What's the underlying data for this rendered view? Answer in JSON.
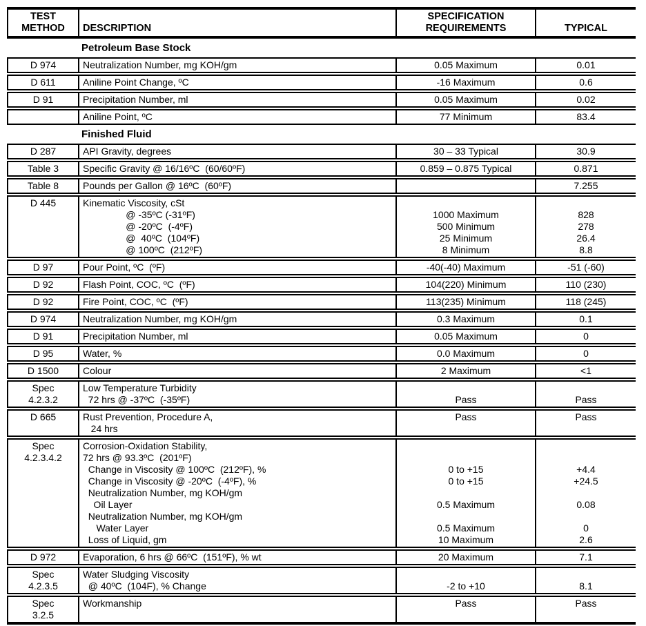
{
  "header": {
    "test_method_line1": "TEST",
    "test_method_line2": "METHOD",
    "description": "DESCRIPTION",
    "spec_line1": "SPECIFICATION",
    "spec_line2": "REQUIREMENTS",
    "typical": "TYPICAL"
  },
  "rows": [
    {
      "type": "section",
      "title": "Petroleum Base Stock"
    },
    {
      "type": "data",
      "method": [
        "D 974"
      ],
      "desc": [
        "Neutralization Number, mg KOH/gm"
      ],
      "spec": [
        "0.05 Maximum"
      ],
      "typical": [
        "0.01"
      ]
    },
    {
      "type": "data",
      "method": [
        "D 611"
      ],
      "desc": [
        "Aniline Point Change, ºC"
      ],
      "spec": [
        "-16 Maximum"
      ],
      "typical": [
        "0.6"
      ]
    },
    {
      "type": "data",
      "method": [
        "D 91"
      ],
      "desc": [
        "Precipitation Number, ml"
      ],
      "spec": [
        "0.05 Maximum"
      ],
      "typical": [
        "0.02"
      ]
    },
    {
      "type": "data",
      "method": [
        ""
      ],
      "desc": [
        "Aniline Point, ºC"
      ],
      "spec": [
        "77 Minimum"
      ],
      "typical": [
        "83.4"
      ]
    },
    {
      "type": "section",
      "title": "Finished Fluid"
    },
    {
      "type": "data",
      "method": [
        "D 287"
      ],
      "desc": [
        "API Gravity, degrees"
      ],
      "spec": [
        "30 – 33 Typical"
      ],
      "typical": [
        "30.9"
      ]
    },
    {
      "type": "data",
      "method": [
        "Table 3"
      ],
      "desc": [
        "Specific Gravity @ 16/16ºC  (60/60ºF)"
      ],
      "spec": [
        "0.859 – 0.875 Typical"
      ],
      "typical": [
        "0.871"
      ]
    },
    {
      "type": "data",
      "method": [
        "Table 8"
      ],
      "desc": [
        "Pounds per Gallon @ 16ºC  (60ºF)"
      ],
      "spec": [
        ""
      ],
      "typical": [
        "7.255"
      ]
    },
    {
      "type": "data",
      "method": [
        "D 445"
      ],
      "desc": [
        "Kinematic Viscosity, cSt",
        "                @ -35ºC (-31ºF)",
        "                @ -20ºC  (-4ºF)",
        "                @  40ºC  (104ºF)",
        "                @ 100ºC  (212ºF)"
      ],
      "spec": [
        "",
        "1000 Maximum",
        "500 Minimum",
        "25 Minimum",
        "8 Minimum"
      ],
      "typical": [
        "",
        "828",
        "278",
        "26.4",
        "8.8"
      ]
    },
    {
      "type": "data",
      "method": [
        "D 97"
      ],
      "desc": [
        "Pour Point, ºC  (ºF)"
      ],
      "spec": [
        "-40(-40) Maximum"
      ],
      "typical": [
        "-51 (-60)"
      ]
    },
    {
      "type": "data",
      "method": [
        "D 92"
      ],
      "desc": [
        "Flash Point, COC, ºC  (ºF)"
      ],
      "spec": [
        "104(220) Minimum"
      ],
      "typical": [
        "110 (230)"
      ]
    },
    {
      "type": "data",
      "method": [
        "D 92"
      ],
      "desc": [
        "Fire Point, COC, ºC  (ºF)"
      ],
      "spec": [
        "113(235) Minimum"
      ],
      "typical": [
        "118 (245)"
      ]
    },
    {
      "type": "data",
      "method": [
        "D 974"
      ],
      "desc": [
        "Neutralization Number, mg KOH/gm"
      ],
      "spec": [
        "0.3 Maximum"
      ],
      "typical": [
        "0.1"
      ]
    },
    {
      "type": "data",
      "method": [
        "D 91"
      ],
      "desc": [
        "Precipitation Number, ml"
      ],
      "spec": [
        "0.05 Maximum"
      ],
      "typical": [
        "0"
      ]
    },
    {
      "type": "data",
      "method": [
        "D 95"
      ],
      "desc": [
        "Water, %"
      ],
      "spec": [
        "0.0 Maximum"
      ],
      "typical": [
        "0"
      ]
    },
    {
      "type": "data",
      "method": [
        "D 1500"
      ],
      "desc": [
        "Colour"
      ],
      "spec": [
        "2 Maximum"
      ],
      "typical": [
        "<1"
      ]
    },
    {
      "type": "data",
      "method": [
        "Spec",
        "4.2.3.2"
      ],
      "desc": [
        "Low Temperature Turbidity",
        "  72 hrs @ -37ºC  (-35ºF)"
      ],
      "spec": [
        "",
        "Pass"
      ],
      "typical": [
        "",
        "Pass"
      ]
    },
    {
      "type": "data",
      "method": [
        "D 665"
      ],
      "desc": [
        "Rust Prevention, Procedure A,",
        "   24 hrs"
      ],
      "spec": [
        "Pass",
        ""
      ],
      "typical": [
        "Pass",
        ""
      ]
    },
    {
      "type": "data",
      "method": [
        "Spec",
        "4.2.3.4.2"
      ],
      "desc": [
        "Corrosion-Oxidation Stability,",
        "72 hrs @ 93.3ºC  (201ºF)",
        "  Change in Viscosity @ 100ºC  (212ºF), %",
        "  Change in Viscosity @ -20ºC  (-4ºF), %",
        "  Neutralization Number, mg KOH/gm",
        "    Oil Layer",
        "  Neutralization Number, mg KOH/gm",
        "     Water Layer",
        "  Loss of Liquid, gm"
      ],
      "spec": [
        "",
        "",
        "0 to +15",
        "0 to +15",
        "",
        "0.5 Maximum",
        "",
        "0.5 Maximum",
        "10 Maximum"
      ],
      "typical": [
        "",
        "",
        "+4.4",
        "+24.5",
        "",
        "0.08",
        "",
        "0",
        "2.6"
      ]
    },
    {
      "type": "data",
      "method": [
        "D 972"
      ],
      "desc": [
        "Evaporation, 6 hrs @ 66ºC  (151ºF), % wt"
      ],
      "spec": [
        "20 Maximum"
      ],
      "typical": [
        "7.1"
      ]
    },
    {
      "type": "data",
      "method": [
        "Spec",
        "4.2.3.5"
      ],
      "desc": [
        "Water Sludging Viscosity",
        "  @ 40ºC  (104F), % Change"
      ],
      "spec": [
        "",
        "-2 to +10"
      ],
      "typical": [
        "",
        "8.1"
      ]
    },
    {
      "type": "data",
      "method": [
        "Spec",
        "3.2.5"
      ],
      "desc": [
        "Workmanship",
        ""
      ],
      "spec": [
        "Pass",
        ""
      ],
      "typical": [
        "Pass",
        ""
      ]
    }
  ]
}
